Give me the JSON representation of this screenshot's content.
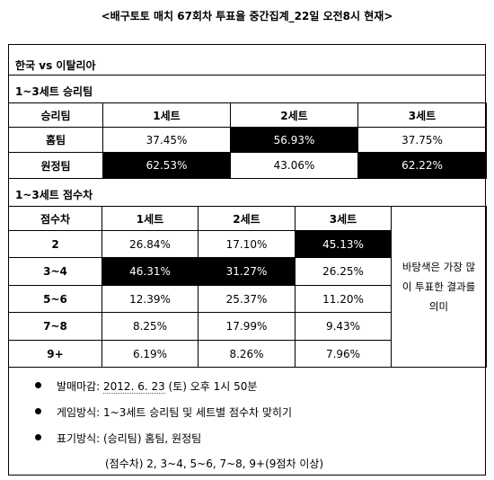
{
  "title": "<배구토토 매치 67회차 투표율 중간집계_22일 오전8시 현재>",
  "match": "한국 vs 이탈리아",
  "winner_section": {
    "title": "1~3세트 승리팀",
    "headers": [
      "승리팀",
      "1세트",
      "2세트",
      "3세트"
    ],
    "rows": [
      {
        "label": "홈팀",
        "values": [
          "37.45%",
          "56.93%",
          "37.75%"
        ]
      },
      {
        "label": "원정팀",
        "values": [
          "62.53%",
          "43.06%",
          "62.22%"
        ]
      }
    ]
  },
  "margin_section": {
    "title": "1~3세트 점수차",
    "headers": [
      "점수차",
      "1세트",
      "2세트",
      "3세트"
    ],
    "rows": [
      {
        "label": "2",
        "values": [
          "26.84%",
          "17.10%",
          "45.13%"
        ]
      },
      {
        "label": "3~4",
        "values": [
          "46.31%",
          "31.27%",
          "26.25%"
        ]
      },
      {
        "label": "5~6",
        "values": [
          "12.39%",
          "25.37%",
          "11.20%"
        ]
      },
      {
        "label": "7~8",
        "values": [
          "8.25%",
          "17.99%",
          "9.43%"
        ]
      },
      {
        "label": "9+",
        "values": [
          "6.19%",
          "8.26%",
          "7.96%"
        ]
      }
    ],
    "note": "바탕색은 가장 많이 투표한 결과를 의미"
  },
  "info": {
    "deadline_label": "발매마감: ",
    "deadline_date": "2012. 6. 23",
    "deadline_rest": " (토) 오후 1시 50분",
    "game_method": "게임방식: 1~3세트 승리팀 및 세트별 점수차 맞히기",
    "mark_method": "표기방식: (승리팀) 홈팀, 원정팀",
    "mark_extra": "(점수차) 2, 3~4, 5~6, 7~8, 9+(9점차 이상)"
  },
  "colors": {
    "highlight_bg": "#000000",
    "highlight_text": "#ffffff"
  }
}
